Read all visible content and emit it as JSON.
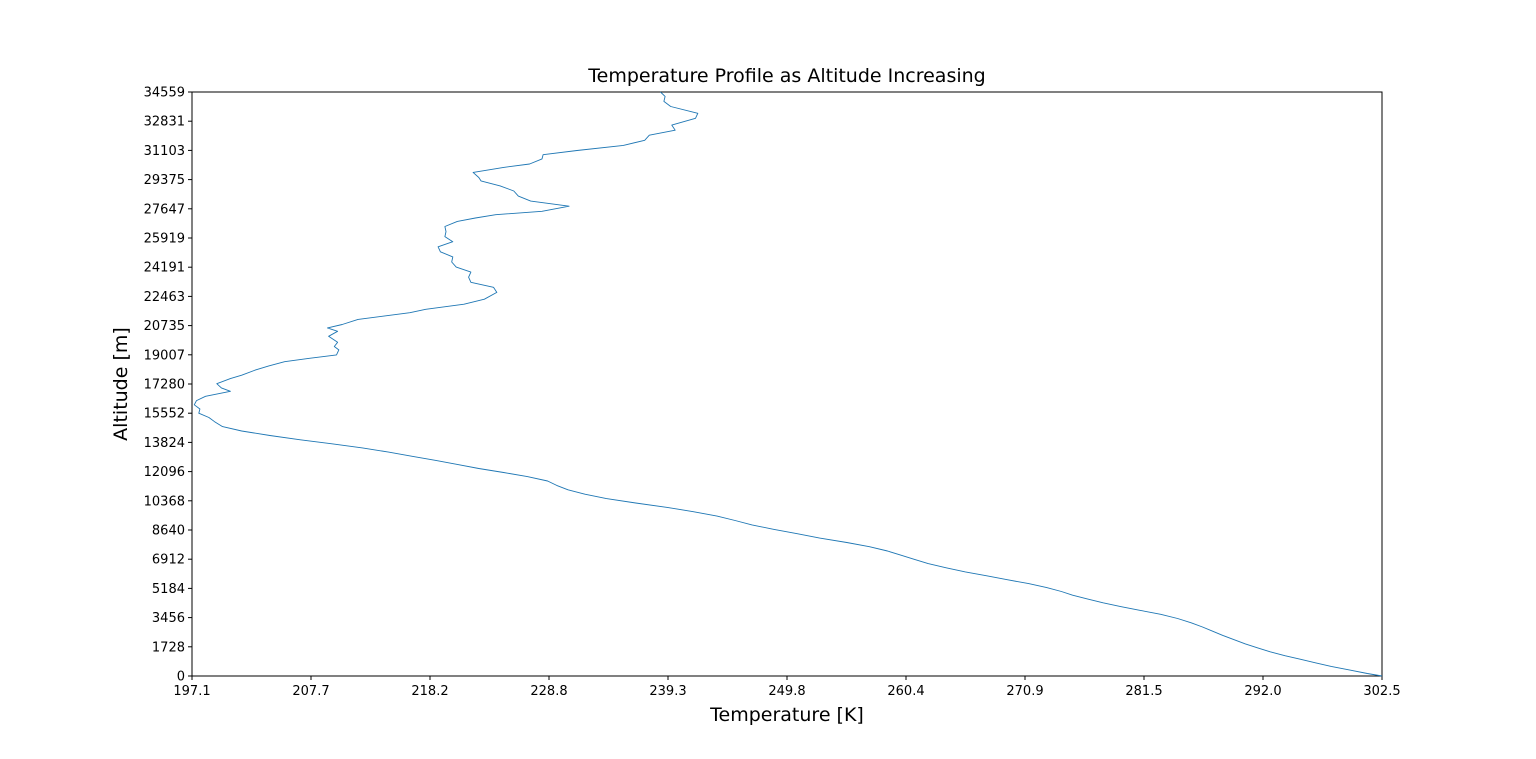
{
  "chart_data": {
    "type": "line",
    "title": "Temperature Profile as Altitude Increasing",
    "xlabel": "Temperature [K]",
    "ylabel": "Altitude [m]",
    "xlim": [
      197.1,
      302.5
    ],
    "ylim": [
      0,
      34559
    ],
    "x_tick_labels": [
      "197.1",
      "207.7",
      "218.2",
      "228.8",
      "239.3",
      "249.8",
      "260.4",
      "270.9",
      "281.5",
      "292.0",
      "302.5"
    ],
    "y_tick_labels": [
      "0",
      "1728",
      "3456",
      "5184",
      "6912",
      "8640",
      "10368",
      "12096",
      "13824",
      "15552",
      "17280",
      "19007",
      "20735",
      "22463",
      "24191",
      "25919",
      "27647",
      "29375",
      "31103",
      "32831",
      "34559"
    ],
    "grid": false,
    "legend": "none",
    "line_color": "#1f77b4",
    "series": [
      {
        "x": [
          302.5,
          301.2,
          299.6,
          298.0,
          296.6,
          295.3,
          293.9,
          292.6,
          291.5,
          290.4,
          289.4,
          288.4,
          287.5,
          286.6,
          285.6,
          284.4,
          282.9,
          281.1,
          279.4,
          277.8,
          276.4,
          275.1,
          274.1,
          272.8,
          271.2,
          269.3,
          267.5,
          265.6,
          263.9,
          262.3,
          261.1,
          259.9,
          258.7,
          257.1,
          255.1,
          252.7,
          250.7,
          248.6,
          246.7,
          245.2,
          243.6,
          241.5,
          239.2,
          236.4,
          233.8,
          231.9,
          230.4,
          229.4,
          228.6,
          226.8,
          224.7,
          222.5,
          220.6,
          218.7,
          216.6,
          214.5,
          212.2,
          209.5,
          206.7,
          204.0,
          201.5,
          199.8,
          199.1,
          198.6,
          197.7,
          197.8,
          197.3,
          197.5,
          198.3,
          200.5,
          199.7,
          199.3,
          200.5,
          201.5,
          202.7,
          203.9,
          205.3,
          207.5,
          209.9,
          210.1,
          209.7,
          210.0,
          209.2,
          210.0,
          209.1,
          210.4,
          211.8,
          214.1,
          216.4,
          217.8,
          221.2,
          223.0,
          224.1,
          223.8,
          221.8,
          221.6,
          221.8,
          220.5,
          220.1,
          220.2,
          219.1,
          218.9,
          220.2,
          219.5,
          219.6,
          219.5,
          220.6,
          222.2,
          224.0,
          228.1,
          230.5,
          227.1,
          226.0,
          225.6,
          224.4,
          222.7,
          222.5,
          222.0,
          224.7,
          227.0,
          228.1,
          228.2,
          231.2,
          235.3,
          237.2,
          237.6,
          239.9,
          239.6,
          241.7,
          241.9,
          239.5,
          238.9,
          239.0,
          238.6
        ],
        "y": [
          0,
          150,
          360,
          570,
          780,
          990,
          1200,
          1430,
          1660,
          1900,
          2150,
          2400,
          2650,
          2900,
          3150,
          3400,
          3650,
          3880,
          4100,
          4330,
          4560,
          4780,
          5000,
          5230,
          5470,
          5700,
          5930,
          6160,
          6400,
          6650,
          6900,
          7150,
          7400,
          7650,
          7900,
          8160,
          8420,
          8680,
          8940,
          9200,
          9460,
          9720,
          9980,
          10240,
          10500,
          10760,
          11020,
          11280,
          11540,
          11800,
          12040,
          12280,
          12520,
          12760,
          13000,
          13250,
          13500,
          13740,
          13980,
          14230,
          14500,
          14760,
          15050,
          15300,
          15550,
          15800,
          16050,
          16300,
          16550,
          16850,
          17050,
          17300,
          17600,
          17800,
          18100,
          18350,
          18600,
          18800,
          19000,
          19300,
          19500,
          19750,
          20100,
          20400,
          20600,
          20800,
          21100,
          21300,
          21500,
          21700,
          22000,
          22300,
          22700,
          23000,
          23300,
          23600,
          23900,
          24200,
          24500,
          24800,
          25100,
          25400,
          25700,
          26000,
          26300,
          26600,
          26900,
          27100,
          27300,
          27500,
          27800,
          28100,
          28400,
          28700,
          29000,
          29300,
          29500,
          29800,
          30100,
          30300,
          30600,
          30850,
          31100,
          31400,
          31700,
          32000,
          32300,
          32600,
          33000,
          33300,
          33700,
          34000,
          34300,
          34559
        ]
      }
    ]
  }
}
